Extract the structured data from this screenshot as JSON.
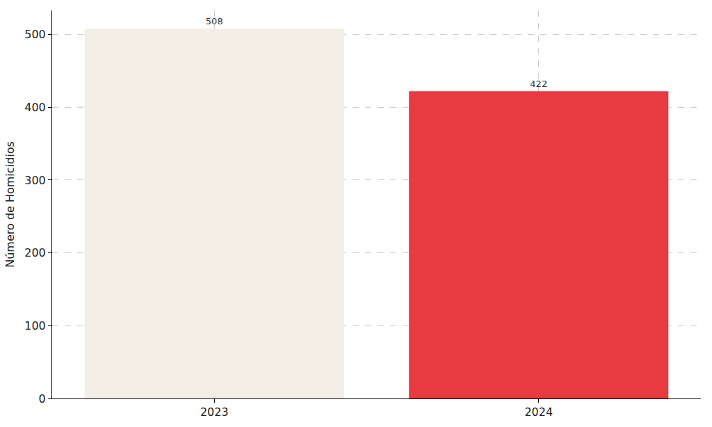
{
  "chart_data": {
    "type": "bar",
    "y_label": "Número de Homicidios",
    "categories": [
      "2023",
      "2024"
    ],
    "values": [
      508,
      422
    ],
    "colors": [
      "#f3efe7",
      "#e83a41"
    ],
    "ylim": [
      0,
      533
    ],
    "yticks": [
      0,
      100,
      200,
      300,
      400,
      500
    ],
    "grid": true,
    "data_labels": true
  }
}
